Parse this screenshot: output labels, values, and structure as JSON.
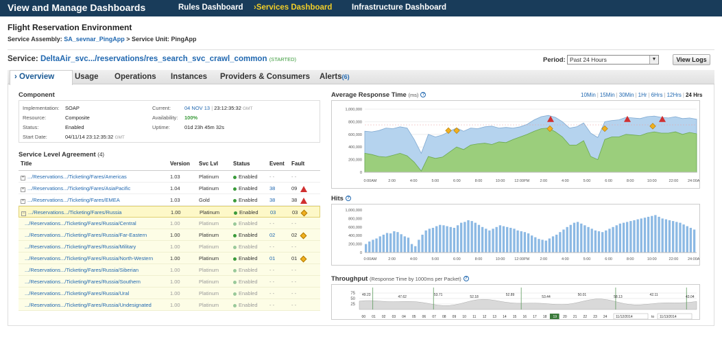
{
  "header": {
    "title": "View and Manage Dashboards",
    "nav": [
      {
        "label": "Rules Dashboard",
        "active": false
      },
      {
        "label": "Services Dashboard",
        "active": true
      },
      {
        "label": "Infrastructure Dashboard",
        "active": false
      }
    ]
  },
  "env": {
    "title": "Flight Reservation Environment",
    "assembly_prefix": "Service Assembly:",
    "assembly_link": "SA_sevnar_PingApp",
    "assembly_suffix": "> Service Unit: PingApp"
  },
  "service": {
    "prefix": "Service:",
    "name": "DeltaAir_svc.../reservations/res_search_svc_crawl_common",
    "status": "(STARTED)"
  },
  "period": {
    "label": "Period:",
    "value": "Past 24 Hours"
  },
  "view_logs": "View Logs",
  "tabs": [
    {
      "label": "Overview",
      "active": true
    },
    {
      "label": "Usage"
    },
    {
      "label": "Operations"
    },
    {
      "label": "Instances"
    },
    {
      "label": "Providers & Consumers"
    },
    {
      "label": "Alerts",
      "count": "(6)"
    }
  ],
  "component": {
    "title": "Component",
    "implementation_label": "Implementation:",
    "implementation": "SOAP",
    "resource_label": "Resource:",
    "resource": "Composite",
    "status_label": "Status:",
    "status": "Enabled",
    "start_label": "Start Date:",
    "start_date": "04/11/14  23:12:35:32",
    "start_tz": "GMT",
    "current_label": "Current:",
    "current_date": "04 NOV 13",
    "current_time": "23:12:35:32",
    "current_tz": "GMT",
    "availability_label": "Availability:",
    "availability": "100%",
    "uptime_label": "Uptime:",
    "uptime": "01d 23h 45m 32s"
  },
  "sla": {
    "title": "Service Level Agreement",
    "count": "(4)",
    "headers": [
      "Title",
      "Version",
      "Svc Lvl",
      "Status",
      "Event",
      "Fault"
    ],
    "rows": [
      {
        "title": ".../Reservations.../Ticketing/Fares/Americas",
        "version": "1.03",
        "level": "Platinum",
        "status": "Enabled",
        "event": "- -",
        "fault": "- -",
        "icon": ""
      },
      {
        "title": ".../Reservations.../Ticketing/Fares/AsiaPacific",
        "version": "1.04",
        "level": "Platinum",
        "status": "Enabled",
        "event": "38",
        "fault": "09",
        "icon": "warn"
      },
      {
        "title": ".../Reservations.../Ticketing/Fares/EMEA",
        "version": "1.03",
        "level": "Gold",
        "status": "Enabled",
        "event": "38",
        "fault": "38",
        "icon": "warn"
      },
      {
        "title": ".../Reservations.../Ticketing/Fares/Russia",
        "version": "1.00",
        "level": "Platinum",
        "status": "Enabled",
        "event": "03",
        "fault": "03",
        "icon": "dia"
      }
    ],
    "subrows": [
      {
        "title": ".../Reservations.../Ticketing/Fares/Russia/Central",
        "version": "1.00",
        "level": "Platinum",
        "status": "Enabled",
        "event": "- -",
        "fault": "- -",
        "icon": "",
        "active": false
      },
      {
        "title": ".../Reservations.../Ticketing/Fares/Russia/Far-Eastern",
        "version": "1.00",
        "level": "Platinum",
        "status": "Enabled",
        "event": "02",
        "fault": "02",
        "icon": "dia",
        "active": true
      },
      {
        "title": ".../Reservations.../Ticketing/Fares/Russia/Military",
        "version": "1.00",
        "level": "Platinum",
        "status": "Enabled",
        "event": "- -",
        "fault": "- -",
        "icon": "",
        "active": false
      },
      {
        "title": ".../Reservations.../Ticketing/Fares/Russia/North-Western",
        "version": "1.00",
        "level": "Platinum",
        "status": "Enabled",
        "event": "01",
        "fault": "01",
        "icon": "dia",
        "active": true
      },
      {
        "title": ".../Reservations.../Ticketing/Fares/Russia/Siberian",
        "version": "1.00",
        "level": "Platinum",
        "status": "Enabled",
        "event": "- -",
        "fault": "- -",
        "icon": "",
        "active": false
      },
      {
        "title": ".../Reservations.../Ticketing/Fares/Russia/Southern",
        "version": "1.00",
        "level": "Platinum",
        "status": "Enabled",
        "event": "- -",
        "fault": "- -",
        "icon": "",
        "active": false
      },
      {
        "title": ".../Reservations.../Ticketing/Fares/Russia/Ural",
        "version": "1.00",
        "level": "Platinum",
        "status": "Enabled",
        "event": "- -",
        "fault": "- -",
        "icon": "",
        "active": false
      },
      {
        "title": ".../Reservations.../Ticketing/Fares/Russia/Undesignated",
        "version": "1.00",
        "level": "Platinum",
        "status": "Enabled",
        "event": "- -",
        "fault": "- -",
        "icon": "",
        "active": false
      }
    ]
  },
  "response_chart_title": "Average Response Time",
  "response_chart_unit": "(ms)",
  "range_links": [
    "10Min",
    "15Min",
    "30Min",
    "1Hr",
    "6Hrs",
    "12Hrs",
    "24 Hrs"
  ],
  "hits_chart_title": "Hits",
  "throughput_chart_title": "Throughput",
  "throughput_chart_sub": "(Response Time by 1000ms per Packet)",
  "throughput_hours": [
    "00",
    "01",
    "02",
    "03",
    "04",
    "05",
    "06",
    "07",
    "08",
    "09",
    "10",
    "11",
    "12",
    "13",
    "14",
    "15",
    "16",
    "17",
    "18",
    "19",
    "20",
    "21",
    "22",
    "23",
    "24"
  ],
  "throughput_selected_hour": "19",
  "throughput_from": "11/12/2014",
  "throughput_to_label": "to",
  "throughput_to": "11/13/2014",
  "colors": {
    "topbar": "#193c5a",
    "accent": "#f2ce28",
    "link": "#2168b0",
    "green": "#3a9a3a",
    "area_blue": "#b5d3ee",
    "area_green": "#9bce7c",
    "hits_bar": "#8cb9e4"
  },
  "chart_data": [
    {
      "type": "area",
      "title": "Average Response Time",
      "ylabel": "(ms)",
      "yticks": [
        "1,000,000",
        "800,000",
        "600,000",
        "400,000",
        "200,000",
        "0"
      ],
      "ylim": [
        0,
        1000000
      ],
      "xticks": [
        "0:00AM",
        "2:00",
        "4:00",
        "5:00",
        "6:00",
        "8:00",
        "10:00",
        "12:00PM",
        "2:00",
        "4:00",
        "5:00",
        "6:00",
        "8:00",
        "10:00",
        "22:00",
        "24:00AM"
      ],
      "series": [
        {
          "values": [
            650000,
            640000,
            660000,
            700000,
            690000,
            720000,
            700000,
            520000,
            300000,
            600000,
            560000,
            590000,
            650000,
            700000,
            650000,
            700000,
            690000,
            720000,
            730000,
            700000,
            710000,
            700000,
            720000,
            760000,
            830000,
            880000,
            900000,
            870000,
            800000,
            700000,
            720000,
            780000,
            620000,
            550000,
            800000,
            820000,
            830000,
            870000,
            860000,
            850000,
            880000,
            890000,
            870000,
            860000,
            880000,
            850000,
            860000,
            840000
          ]
        },
        {
          "values": [
            300000,
            280000,
            250000,
            240000,
            270000,
            300000,
            260000,
            160000,
            20000,
            250000,
            220000,
            240000,
            320000,
            400000,
            360000,
            430000,
            450000,
            460000,
            440000,
            480000,
            470000,
            520000,
            560000,
            600000,
            650000,
            690000,
            700000,
            640000,
            560000,
            430000,
            430000,
            500000,
            250000,
            200000,
            520000,
            560000,
            560000,
            600000,
            590000,
            580000,
            620000,
            640000,
            620000,
            620000,
            640000,
            600000,
            630000,
            610000
          ]
        }
      ]
    },
    {
      "type": "bar",
      "title": "Hits",
      "yticks": [
        "1,000,000",
        "800,000",
        "600,000",
        "400,000",
        "200,000",
        "0"
      ],
      "ylim": [
        0,
        1000000
      ],
      "xticks": [
        "0:00AM",
        "2:00",
        "4:00",
        "5:00",
        "6:00",
        "8:00",
        "10:00",
        "12:00PM",
        "2:00",
        "4:00",
        "5:00",
        "6:00",
        "8:00",
        "10:00",
        "22:00",
        "24:00AM"
      ],
      "values": [
        200000,
        260000,
        300000,
        330000,
        380000,
        420000,
        460000,
        450000,
        500000,
        480000,
        430000,
        380000,
        350000,
        200000,
        150000,
        300000,
        420000,
        520000,
        560000,
        580000,
        620000,
        650000,
        640000,
        620000,
        600000,
        580000,
        640000,
        700000,
        720000,
        760000,
        740000,
        700000,
        650000,
        600000,
        560000,
        520000,
        560000,
        600000,
        640000,
        620000,
        600000,
        580000,
        560000,
        520000,
        500000,
        480000,
        450000,
        400000,
        360000,
        320000,
        300000,
        280000,
        330000,
        380000,
        420000,
        480000,
        540000,
        600000,
        650000,
        700000,
        720000,
        680000,
        640000,
        600000,
        560000,
        520000,
        500000,
        480000,
        520000,
        560000,
        600000,
        640000,
        680000,
        700000,
        720000,
        740000,
        760000,
        780000,
        800000,
        820000,
        840000,
        860000,
        880000,
        840000,
        800000,
        780000,
        760000,
        740000,
        720000,
        700000,
        660000,
        620000,
        580000,
        540000
      ]
    },
    {
      "type": "area",
      "title": "Throughput",
      "subtitle": "(Response Time by 1000ms per Packet)",
      "yticks": [
        "75",
        "50",
        "25"
      ],
      "ylim": [
        0,
        100
      ],
      "annotations": [
        "49.23",
        "47.62",
        "53.71",
        "52.18",
        "52.89",
        "53.44",
        "50.01",
        "58.13",
        "42.11",
        "43.04"
      ]
    }
  ]
}
